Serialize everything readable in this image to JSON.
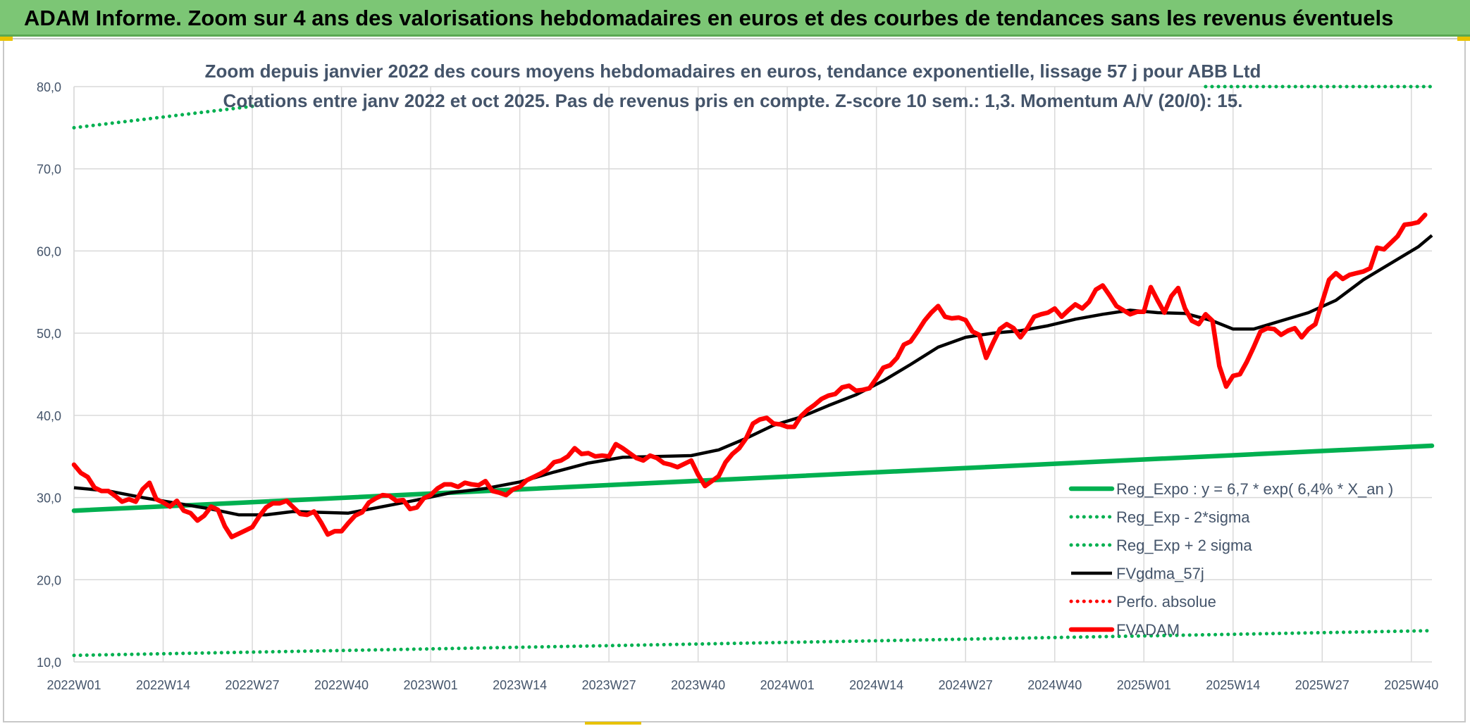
{
  "header": {
    "title": "ADAM Informe. Zoom sur 4 ans des valorisations hebdomadaires en euros et des courbes de tendances sans les revenus éventuels"
  },
  "colors": {
    "header_bg": "#7cc675",
    "reg_expo": "#00b050",
    "fvgdma": "#000000",
    "fvadam": "#ff0000",
    "perfo": "#ff0000",
    "axis_text": "#44546a",
    "grid": "#d9d9d9"
  },
  "chart_data": {
    "type": "line",
    "title": [
      "Zoom depuis janvier 2022 des cours moyens hebdomadaires en euros, tendance exponentielle, lissage 57 j pour ABB Ltd",
      "Cotations entre janv 2022 et oct 2025. Pas de revenus pris en compte. Z-score 10 sem.: 1,3. Momentum A/V (20/0): 15."
    ],
    "ylim": [
      10,
      80
    ],
    "y_ticks": [
      "10,0",
      "20,0",
      "30,0",
      "40,0",
      "50,0",
      "60,0",
      "70,0",
      "80,0"
    ],
    "y_tick_values": [
      10,
      20,
      30,
      40,
      50,
      60,
      70,
      80
    ],
    "x_count": 199,
    "x_ticks": [
      {
        "i": 0,
        "label": "2022W01"
      },
      {
        "i": 13,
        "label": "2022W14"
      },
      {
        "i": 26,
        "label": "2022W27"
      },
      {
        "i": 39,
        "label": "2022W40"
      },
      {
        "i": 52,
        "label": "2023W01"
      },
      {
        "i": 65,
        "label": "2023W14"
      },
      {
        "i": 78,
        "label": "2023W27"
      },
      {
        "i": 91,
        "label": "2023W40"
      },
      {
        "i": 104,
        "label": "2024W01"
      },
      {
        "i": 117,
        "label": "2024W14"
      },
      {
        "i": 130,
        "label": "2024W27"
      },
      {
        "i": 143,
        "label": "2024W40"
      },
      {
        "i": 156,
        "label": "2025W01"
      },
      {
        "i": 169,
        "label": "2025W14"
      },
      {
        "i": 182,
        "label": "2025W27"
      },
      {
        "i": 195,
        "label": "2025W40"
      }
    ],
    "grid": true,
    "legend_position": "bottom-right",
    "series": [
      {
        "name": "Reg_Expo : y = 6,7 * exp( 6,4% *  X_an )",
        "style": "thick",
        "color": "#00b050",
        "points": [
          [
            0,
            28.4
          ],
          [
            198,
            36.3
          ]
        ]
      },
      {
        "name": "Reg_Exp - 2*sigma",
        "style": "dotted",
        "color": "#00b050",
        "points": [
          [
            0,
            10.8
          ],
          [
            198,
            13.8
          ]
        ]
      },
      {
        "name": "Reg_Exp + 2 sigma",
        "style": "dotted",
        "color": "#00b050",
        "clipped": "exits the plot above 80,0",
        "points": [
          [
            0,
            75.0
          ],
          [
            26,
            77.6
          ]
        ]
      },
      {
        "name": "FVgdma_57j",
        "style": "solid",
        "color": "#000000",
        "points": [
          [
            0,
            31.2
          ],
          [
            5,
            30.8
          ],
          [
            10,
            30.0
          ],
          [
            15,
            29.3
          ],
          [
            20,
            28.6
          ],
          [
            24,
            27.9
          ],
          [
            28,
            27.9
          ],
          [
            32,
            28.3
          ],
          [
            36,
            28.2
          ],
          [
            40,
            28.1
          ],
          [
            45,
            28.9
          ],
          [
            50,
            29.7
          ],
          [
            55,
            30.6
          ],
          [
            60,
            31.1
          ],
          [
            65,
            31.9
          ],
          [
            70,
            33.1
          ],
          [
            75,
            34.2
          ],
          [
            80,
            34.9
          ],
          [
            85,
            35.0
          ],
          [
            90,
            35.1
          ],
          [
            94,
            35.8
          ],
          [
            98,
            37.2
          ],
          [
            102,
            38.8
          ],
          [
            106,
            39.8
          ],
          [
            110,
            41.2
          ],
          [
            114,
            42.5
          ],
          [
            118,
            44.2
          ],
          [
            122,
            46.2
          ],
          [
            126,
            48.3
          ],
          [
            130,
            49.5
          ],
          [
            134,
            50.0
          ],
          [
            138,
            50.3
          ],
          [
            142,
            50.9
          ],
          [
            146,
            51.7
          ],
          [
            150,
            52.3
          ],
          [
            154,
            52.8
          ],
          [
            158,
            52.5
          ],
          [
            162,
            52.4
          ],
          [
            166,
            51.5
          ],
          [
            169,
            50.5
          ],
          [
            172,
            50.5
          ],
          [
            176,
            51.5
          ],
          [
            180,
            52.5
          ],
          [
            184,
            54.0
          ],
          [
            188,
            56.5
          ],
          [
            192,
            58.5
          ],
          [
            196,
            60.5
          ],
          [
            198,
            61.9
          ]
        ]
      },
      {
        "name": "Perfo. absolue",
        "style": "dotted",
        "color": "#ff0000",
        "points": []
      },
      {
        "name": "FVADAM",
        "style": "thick",
        "color": "#ff0000",
        "points": [
          [
            0,
            34.0
          ],
          [
            1,
            33.0
          ],
          [
            2,
            32.5
          ],
          [
            3,
            31.2
          ],
          [
            4,
            30.8
          ],
          [
            5,
            30.8
          ],
          [
            6,
            30.2
          ],
          [
            7,
            29.5
          ],
          [
            8,
            29.8
          ],
          [
            9,
            29.5
          ],
          [
            10,
            31.0
          ],
          [
            11,
            31.8
          ],
          [
            12,
            29.8
          ],
          [
            13,
            29.4
          ],
          [
            14,
            28.9
          ],
          [
            15,
            29.6
          ],
          [
            16,
            28.4
          ],
          [
            17,
            28.1
          ],
          [
            18,
            27.2
          ],
          [
            19,
            27.8
          ],
          [
            20,
            28.9
          ],
          [
            21,
            28.5
          ],
          [
            22,
            26.5
          ],
          [
            23,
            25.2
          ],
          [
            24,
            25.6
          ],
          [
            25,
            26.0
          ],
          [
            26,
            26.4
          ],
          [
            27,
            27.7
          ],
          [
            28,
            28.8
          ],
          [
            29,
            29.3
          ],
          [
            30,
            29.3
          ],
          [
            31,
            29.6
          ],
          [
            32,
            28.8
          ],
          [
            33,
            28.0
          ],
          [
            34,
            27.9
          ],
          [
            35,
            28.3
          ],
          [
            36,
            27.0
          ],
          [
            37,
            25.5
          ],
          [
            38,
            25.9
          ],
          [
            39,
            25.9
          ],
          [
            40,
            26.9
          ],
          [
            41,
            27.8
          ],
          [
            42,
            28.2
          ],
          [
            43,
            29.4
          ],
          [
            44,
            29.9
          ],
          [
            45,
            30.3
          ],
          [
            46,
            30.2
          ],
          [
            47,
            29.6
          ],
          [
            48,
            29.7
          ],
          [
            49,
            28.6
          ],
          [
            50,
            28.8
          ],
          [
            51,
            29.9
          ],
          [
            52,
            30.3
          ],
          [
            53,
            31.1
          ],
          [
            54,
            31.6
          ],
          [
            55,
            31.6
          ],
          [
            56,
            31.3
          ],
          [
            57,
            31.8
          ],
          [
            58,
            31.6
          ],
          [
            59,
            31.5
          ],
          [
            60,
            32.0
          ],
          [
            61,
            30.8
          ],
          [
            62,
            30.6
          ],
          [
            63,
            30.3
          ],
          [
            64,
            31.0
          ],
          [
            65,
            31.3
          ],
          [
            66,
            32.1
          ],
          [
            67,
            32.5
          ],
          [
            68,
            32.9
          ],
          [
            69,
            33.4
          ],
          [
            70,
            34.3
          ],
          [
            71,
            34.5
          ],
          [
            72,
            35.0
          ],
          [
            73,
            36.0
          ],
          [
            74,
            35.3
          ],
          [
            75,
            35.4
          ],
          [
            76,
            35.0
          ],
          [
            77,
            35.1
          ],
          [
            78,
            35.0
          ],
          [
            79,
            36.5
          ],
          [
            80,
            36.0
          ],
          [
            81,
            35.4
          ],
          [
            82,
            34.8
          ],
          [
            83,
            34.5
          ],
          [
            84,
            35.1
          ],
          [
            85,
            34.8
          ],
          [
            86,
            34.2
          ],
          [
            87,
            34.0
          ],
          [
            88,
            33.7
          ],
          [
            89,
            34.1
          ],
          [
            90,
            34.5
          ],
          [
            91,
            32.8
          ],
          [
            92,
            31.4
          ],
          [
            93,
            32.0
          ],
          [
            94,
            32.6
          ],
          [
            95,
            34.3
          ],
          [
            96,
            35.3
          ],
          [
            97,
            36.0
          ],
          [
            98,
            37.2
          ],
          [
            99,
            39.0
          ],
          [
            100,
            39.5
          ],
          [
            101,
            39.7
          ],
          [
            102,
            39.0
          ],
          [
            103,
            38.9
          ],
          [
            104,
            38.6
          ],
          [
            105,
            38.6
          ],
          [
            106,
            39.9
          ],
          [
            107,
            40.7
          ],
          [
            108,
            41.3
          ],
          [
            109,
            42.0
          ],
          [
            110,
            42.4
          ],
          [
            111,
            42.6
          ],
          [
            112,
            43.4
          ],
          [
            113,
            43.6
          ],
          [
            114,
            43.0
          ],
          [
            115,
            43.1
          ],
          [
            116,
            43.3
          ],
          [
            117,
            44.5
          ],
          [
            118,
            45.8
          ],
          [
            119,
            46.1
          ],
          [
            120,
            47.0
          ],
          [
            121,
            48.6
          ],
          [
            122,
            49.0
          ],
          [
            123,
            50.2
          ],
          [
            124,
            51.5
          ],
          [
            125,
            52.5
          ],
          [
            126,
            53.3
          ],
          [
            127,
            52.0
          ],
          [
            128,
            51.8
          ],
          [
            129,
            51.9
          ],
          [
            130,
            51.6
          ],
          [
            131,
            50.2
          ],
          [
            132,
            49.8
          ],
          [
            133,
            47.0
          ],
          [
            134,
            48.8
          ],
          [
            135,
            50.5
          ],
          [
            136,
            51.1
          ],
          [
            137,
            50.6
          ],
          [
            138,
            49.5
          ],
          [
            139,
            50.6
          ],
          [
            140,
            52.0
          ],
          [
            141,
            52.3
          ],
          [
            142,
            52.5
          ],
          [
            143,
            53.0
          ],
          [
            144,
            52.0
          ],
          [
            145,
            52.8
          ],
          [
            146,
            53.5
          ],
          [
            147,
            53.0
          ],
          [
            148,
            53.8
          ],
          [
            149,
            55.3
          ],
          [
            150,
            55.8
          ],
          [
            151,
            54.6
          ],
          [
            152,
            53.3
          ],
          [
            153,
            52.8
          ],
          [
            154,
            52.3
          ],
          [
            155,
            52.6
          ],
          [
            156,
            52.6
          ],
          [
            157,
            55.6
          ],
          [
            158,
            54.0
          ],
          [
            159,
            52.5
          ],
          [
            160,
            54.5
          ],
          [
            161,
            55.5
          ],
          [
            162,
            53.0
          ],
          [
            163,
            51.5
          ],
          [
            164,
            51.1
          ],
          [
            165,
            52.3
          ],
          [
            166,
            51.5
          ],
          [
            167,
            46.0
          ],
          [
            168,
            43.5
          ],
          [
            169,
            44.8
          ],
          [
            170,
            45.0
          ],
          [
            171,
            46.5
          ],
          [
            172,
            48.3
          ],
          [
            173,
            50.2
          ],
          [
            174,
            50.6
          ],
          [
            175,
            50.5
          ],
          [
            176,
            49.8
          ],
          [
            177,
            50.3
          ],
          [
            178,
            50.6
          ],
          [
            179,
            49.5
          ],
          [
            180,
            50.5
          ],
          [
            181,
            51.1
          ],
          [
            182,
            53.8
          ],
          [
            183,
            56.5
          ],
          [
            184,
            57.3
          ],
          [
            185,
            56.6
          ],
          [
            186,
            57.1
          ],
          [
            187,
            57.3
          ],
          [
            188,
            57.5
          ],
          [
            189,
            57.9
          ],
          [
            190,
            60.4
          ],
          [
            191,
            60.2
          ],
          [
            192,
            61.0
          ],
          [
            193,
            61.8
          ],
          [
            194,
            63.2
          ],
          [
            195,
            63.3
          ],
          [
            196,
            63.5
          ],
          [
            197,
            64.4
          ]
        ]
      }
    ]
  },
  "legend": {
    "items": [
      {
        "label": "Reg_Expo : y = 6,7 * exp( 6,4% *  X_an )",
        "style": "thick",
        "color": "#00b050"
      },
      {
        "label": "Reg_Exp - 2*sigma",
        "style": "dotted",
        "color": "#00b050"
      },
      {
        "label": "Reg_Exp + 2 sigma",
        "style": "dotted",
        "color": "#00b050"
      },
      {
        "label": "FVgdma_57j",
        "style": "solid",
        "color": "#000000"
      },
      {
        "label": "Perfo. absolue",
        "style": "dotted",
        "color": "#ff0000"
      },
      {
        "label": "FVADAM",
        "style": "thick",
        "color": "#ff0000"
      }
    ]
  }
}
